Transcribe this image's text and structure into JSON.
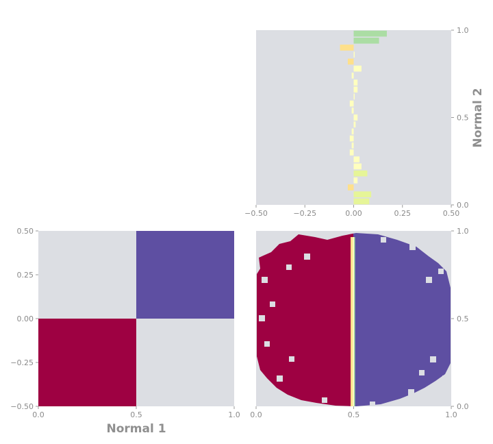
{
  "colors": {
    "panel_background": "#dcdee3",
    "class_red": "#9e0142",
    "class_purple": "#5e4fa2",
    "boundary_yellow": "#fee08b",
    "boundary_light_yellow": "#ffffbf",
    "boundary_light_green": "#e6f598",
    "boundary_green": "#abdda4",
    "text_gray": "#8a8a8a"
  },
  "labels": {
    "x_title": "Normal 1",
    "y_title": "Normal 2"
  },
  "chart_data": [
    {
      "id": "top-right-bar-profile",
      "type": "bar",
      "orientation": "horizontal",
      "xlim": [
        -0.5,
        0.5
      ],
      "ylim": [
        0.0,
        1.0
      ],
      "x_ticks": [
        "−0.50",
        "−0.25",
        "0.00",
        "0.25",
        "0.50"
      ],
      "y_ticks": [
        "0.0",
        "0.5",
        "1.0"
      ],
      "y_axis_side": "right",
      "ylabel": "Normal 2",
      "grid": false,
      "y": [
        0.02,
        0.06,
        0.1,
        0.14,
        0.18,
        0.22,
        0.26,
        0.3,
        0.34,
        0.38,
        0.42,
        0.46,
        0.5,
        0.54,
        0.58,
        0.62,
        0.66,
        0.7,
        0.74,
        0.78,
        0.82,
        0.86,
        0.9,
        0.94,
        0.98
      ],
      "values": [
        0.08,
        0.09,
        -0.03,
        0.02,
        0.07,
        0.04,
        0.03,
        -0.02,
        -0.01,
        -0.02,
        -0.01,
        0.01,
        0.02,
        -0.01,
        -0.02,
        0.0,
        0.02,
        0.02,
        -0.01,
        0.04,
        -0.03,
        0.0,
        -0.07,
        0.13,
        0.17
      ]
    },
    {
      "id": "bottom-left-quadrants",
      "type": "heatmap",
      "xlim": [
        0.0,
        1.0
      ],
      "ylim": [
        -0.5,
        0.5
      ],
      "x_ticks": [
        "0.0",
        "0.5",
        "1.0"
      ],
      "y_ticks": [
        "0.50",
        "0.25",
        "0.00",
        "−0.25",
        "−0.50"
      ],
      "xlabel": "Normal 1",
      "grid": false,
      "cells": [
        {
          "x": [
            0.0,
            0.5
          ],
          "y": [
            0.0,
            0.5
          ],
          "class": "empty"
        },
        {
          "x": [
            0.5,
            1.0
          ],
          "y": [
            0.0,
            0.5
          ],
          "class": "purple"
        },
        {
          "x": [
            0.0,
            0.5
          ],
          "y": [
            -0.5,
            0.0
          ],
          "class": "red"
        },
        {
          "x": [
            0.5,
            1.0
          ],
          "y": [
            -0.5,
            0.0
          ],
          "class": "empty"
        }
      ]
    },
    {
      "id": "bottom-right-classification",
      "type": "heatmap",
      "xlim": [
        0.0,
        1.0
      ],
      "ylim": [
        0.0,
        1.0
      ],
      "x_ticks": [
        "0.0",
        "0.5",
        "1.0"
      ],
      "y_ticks": [
        "0.0",
        "0.5",
        "1.0"
      ],
      "y_axis_side": "right",
      "grid": false,
      "decision_boundary_x": 0.5,
      "regions": [
        {
          "x": [
            0.0,
            0.5
          ],
          "class": "red"
        },
        {
          "x": [
            0.5,
            1.0
          ],
          "class": "purple"
        }
      ]
    }
  ]
}
